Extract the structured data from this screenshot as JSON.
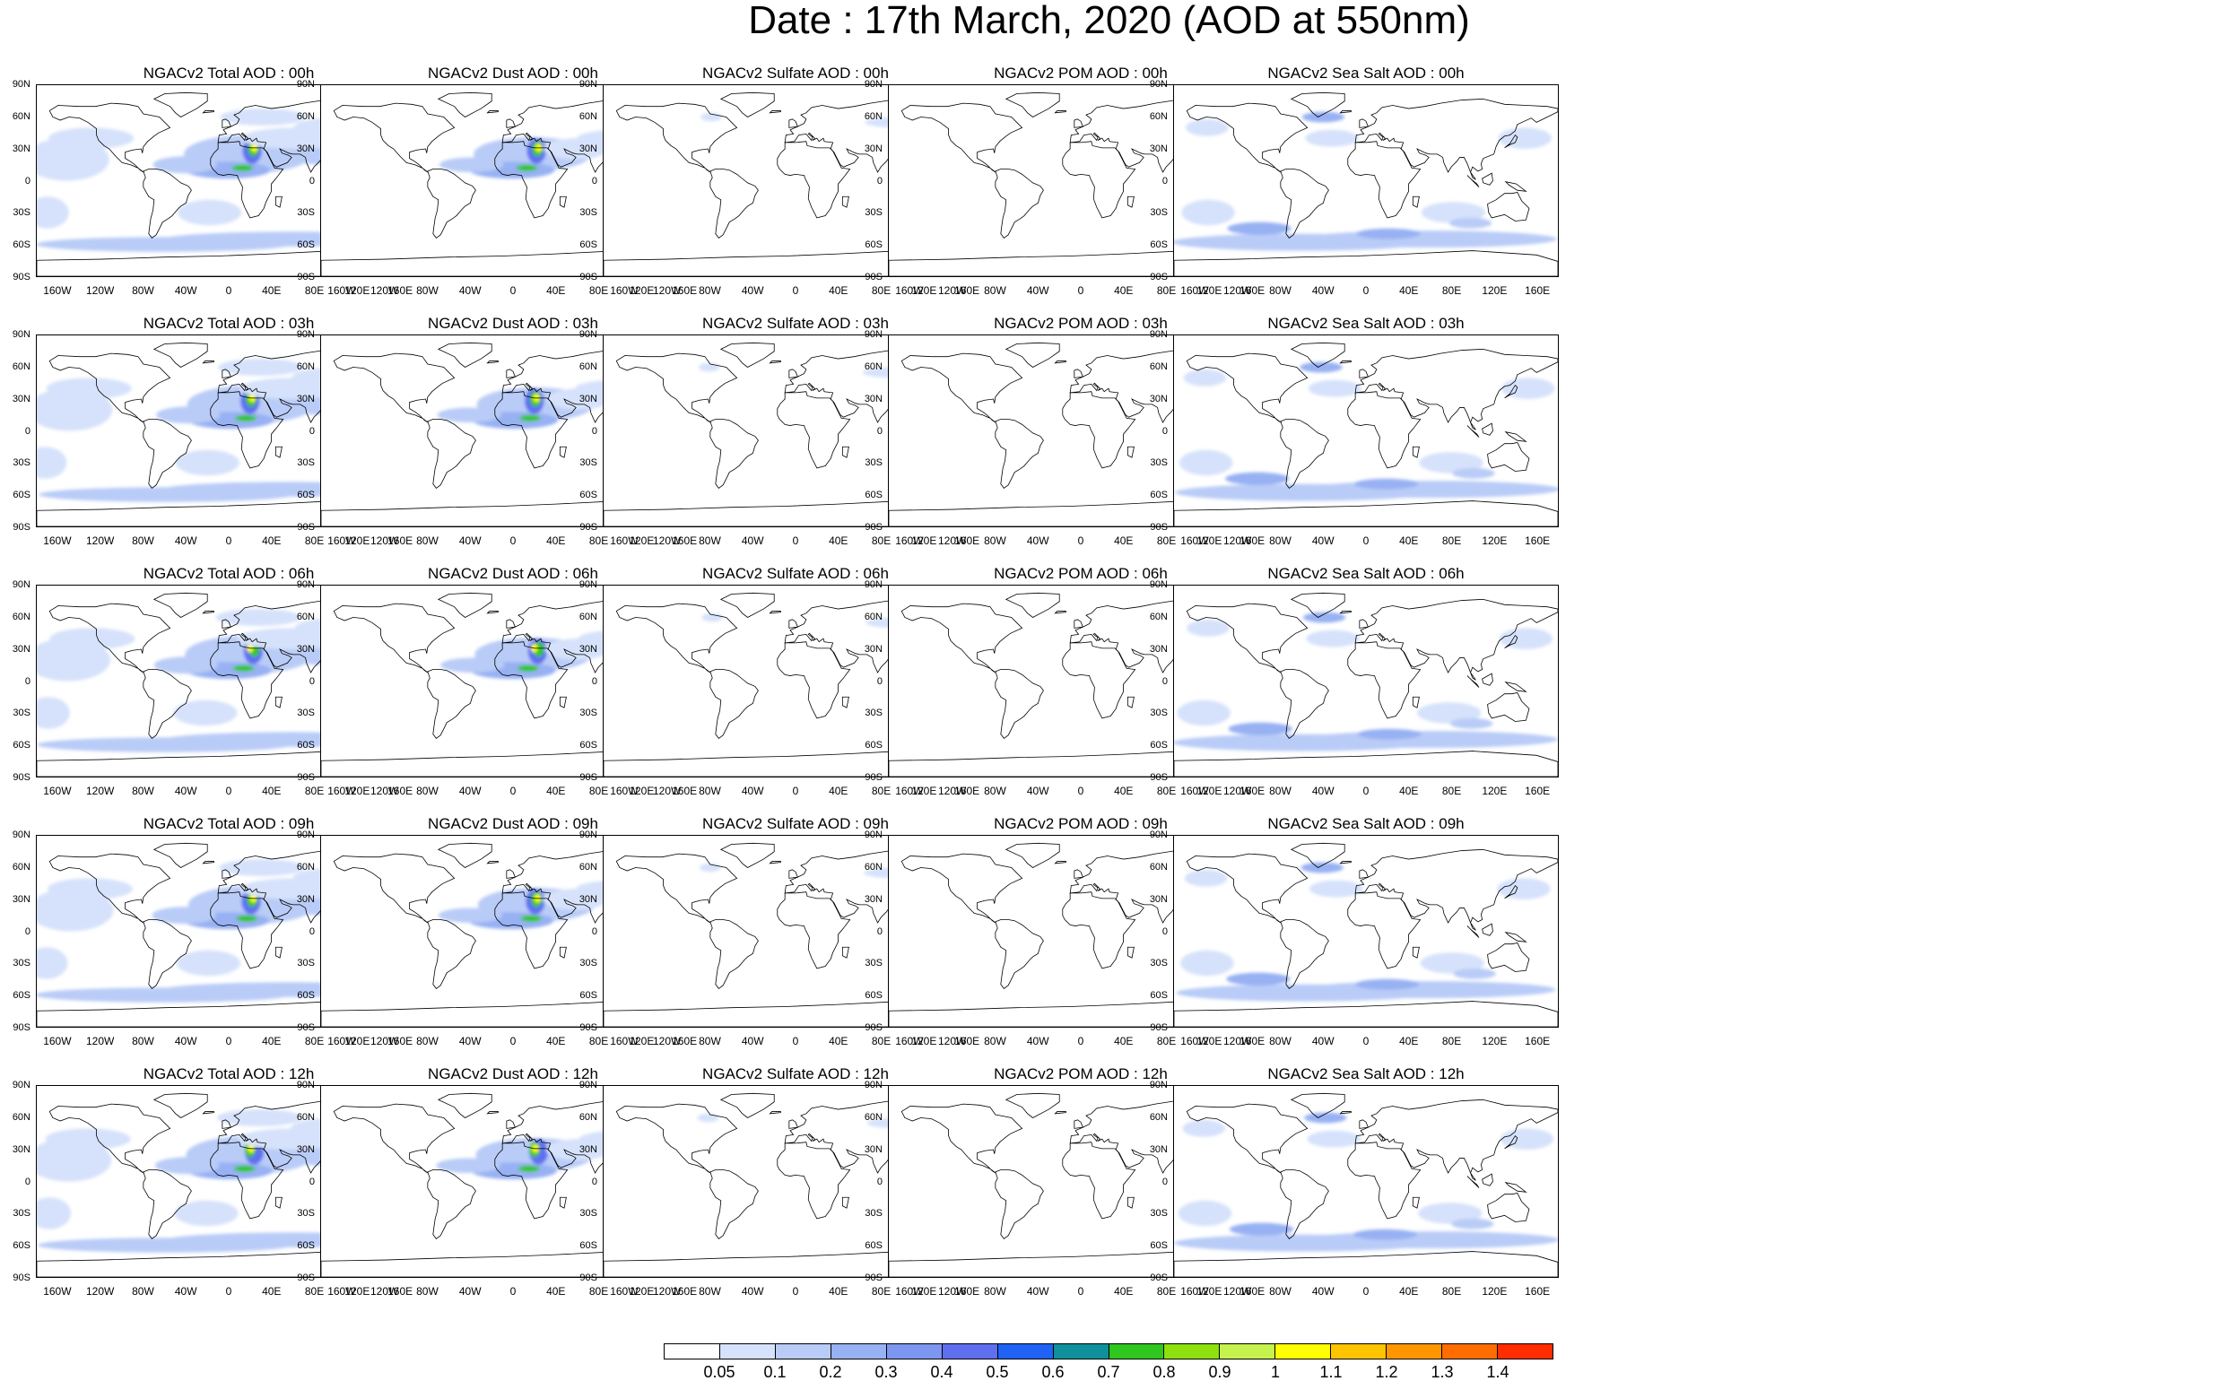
{
  "title": "Date : 17th March, 2020 (AOD at 550nm)",
  "lat_labels": [
    "90N",
    "60N",
    "30N",
    "0",
    "30S",
    "60S",
    "90S"
  ],
  "lon_labels": [
    "160W",
    "120W",
    "80W",
    "40W",
    "0",
    "40E",
    "80E",
    "120E",
    "160E"
  ],
  "rows": [
    {
      "time": "00h",
      "titles": [
        "NGACv2 Total AOD : 00h",
        "NGACv2 Dust AOD : 00h",
        "NGACv2 Sulfate AOD : 00h",
        "NGACv2 POM AOD : 00h",
        "NGACv2 Sea Salt AOD : 00h"
      ]
    },
    {
      "time": "03h",
      "titles": [
        "NGACv2 Total AOD : 03h",
        "NGACv2 Dust AOD : 03h",
        "NGACv2 Sulfate AOD : 03h",
        "NGACv2 POM AOD : 03h",
        "NGACv2 Sea Salt AOD : 03h"
      ]
    },
    {
      "time": "06h",
      "titles": [
        "NGACv2 Total AOD : 06h",
        "NGACv2 Dust AOD : 06h",
        "NGACv2 Sulfate AOD : 06h",
        "NGACv2 POM AOD : 06h",
        "NGACv2 Sea Salt AOD : 06h"
      ]
    },
    {
      "time": "09h",
      "titles": [
        "NGACv2 Total AOD : 09h",
        "NGACv2 Dust AOD : 09h",
        "NGACv2 Sulfate AOD : 09h",
        "NGACv2 POM AOD : 09h",
        "NGACv2 Sea Salt  AOD : 09h"
      ]
    },
    {
      "time": "12h",
      "titles": [
        "NGACv2 Total AOD  : 12h",
        "NGACv2 Dust AOD : 12h",
        "NGACv2 Sulfate AOD : 12h",
        "NGACv2 POM  AOD : 12h",
        "NGACv2 Sea Salt AOD : 12h"
      ]
    }
  ],
  "species": [
    "Total",
    "Dust",
    "Sulfate",
    "POM",
    "Sea Salt"
  ],
  "colorbar": {
    "labels": [
      "0.05",
      "0.1",
      "0.2",
      "0.3",
      "0.4",
      "0.5",
      "0.6",
      "0.7",
      "0.8",
      "0.9",
      "1",
      "1.1",
      "1.2",
      "1.3",
      "1.4"
    ],
    "colors": [
      "#ffffff",
      "#d6e2fb",
      "#b9ccf7",
      "#97b1f3",
      "#7d96f0",
      "#5f6ff0",
      "#1f62f5",
      "#10909a",
      "#2fc61f",
      "#8ee10d",
      "#c5f24d",
      "#ffff00",
      "#ffc400",
      "#ff9600",
      "#ff6d00",
      "#ff2d00"
    ]
  }
}
